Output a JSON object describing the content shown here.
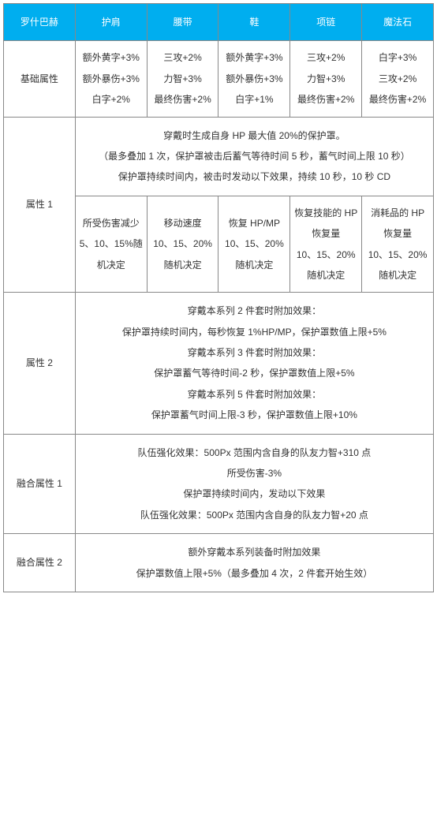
{
  "header": [
    "罗什巴赫",
    "护肩",
    "腰带",
    "鞋",
    "项链",
    "魔法石"
  ],
  "rows": {
    "base": {
      "label": "基础属性",
      "cells": [
        "额外黄字+3%\n额外暴伤+3%\n白字+2%",
        "三攻+2%\n力智+3%\n最终伤害+2%",
        "额外黄字+3%\n额外暴伤+3%\n白字+1%",
        "三攻+2%\n力智+3%\n最终伤害+2%",
        "白字+3%\n三攻+2%\n最终伤害+2%"
      ]
    },
    "attr1": {
      "label": "属性 1",
      "top": "穿戴时生成自身 HP 最大值 20%的保护罩。\n（最多叠加 1 次，保护罩被击后蓄气等待时间 5 秒，蓄气时间上限 10 秒）\n保护罩持续时间内，被击时发动以下效果，持续 10 秒，10 秒 CD",
      "cells": [
        "所受伤害减少\n5、10、15%随机决定",
        "移动速度\n10、15、20%随机决定",
        "恢复 HP/MP\n10、15、20%随机决定",
        "恢复技能的 HP 恢复量\n10、15、20%随机决定",
        "消耗品的 HP 恢复量\n10、15、20%随机决定"
      ]
    },
    "attr2": {
      "label": "属性 2",
      "content": "穿戴本系列 2 件套时附加效果：\n保护罩持续时间内，每秒恢复 1%HP/MP，保护罩数值上限+5%\n穿戴本系列 3 件套时附加效果：\n保护罩蓄气等待时间-2 秒，保护罩数值上限+5%\n穿戴本系列 5 件套时附加效果：\n保护罩蓄气时间上限-3 秒，保护罩数值上限+10%"
    },
    "fusion1": {
      "label": "融合属性 1",
      "content": "队伍强化效果：500Px 范围内含自身的队友力智+310 点\n所受伤害-3%\n保护罩持续时间内，发动以下效果\n队伍强化效果：500Px 范围内含自身的队友力智+20 点"
    },
    "fusion2": {
      "label": "融合属性 2",
      "content": "额外穿戴本系列装备时附加效果\n保护罩数值上限+5%（最多叠加 4 次，2 件套开始生效）"
    }
  }
}
